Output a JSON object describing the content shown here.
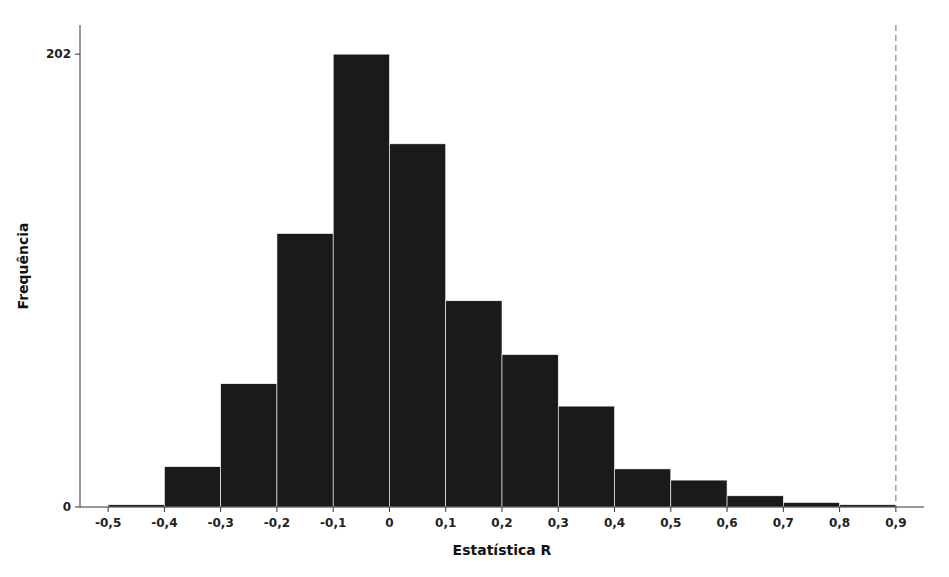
{
  "chart_data": {
    "type": "histogram",
    "bins": [
      -0.5,
      -0.4,
      -0.3,
      -0.2,
      -0.1,
      0.0,
      0.1,
      0.2,
      0.3,
      0.4,
      0.5,
      0.6,
      0.7,
      0.8,
      0.9
    ],
    "values": [
      1,
      18,
      55,
      122,
      202,
      162,
      92,
      68,
      45,
      17,
      12,
      5,
      2,
      1
    ],
    "color": "#1a1a1a",
    "xlabel": "Estatística R",
    "ylabel": "Frequência",
    "xlim": [
      -0.55,
      0.95
    ],
    "ylim": [
      0,
      215
    ],
    "xticks": [
      {
        "value": -0.5,
        "label": "-0,5"
      },
      {
        "value": -0.4,
        "label": "-0,4"
      },
      {
        "value": -0.3,
        "label": "-0,3"
      },
      {
        "value": -0.2,
        "label": "-0,2"
      },
      {
        "value": -0.1,
        "label": "-0,1"
      },
      0,
      {
        "value": 0.1,
        "label": "0,1"
      },
      {
        "value": 0.2,
        "label": "0,2"
      },
      {
        "value": 0.3,
        "label": "0,3"
      },
      {
        "value": 0.4,
        "label": "0,4"
      },
      {
        "value": 0.5,
        "label": "0,5"
      },
      {
        "value": 0.6,
        "label": "0,6"
      },
      {
        "value": 0.7,
        "label": "0,7"
      },
      {
        "value": 0.8,
        "label": "0,8"
      },
      {
        "value": 0.9,
        "label": "0,9"
      }
    ],
    "yticks": [
      0,
      202
    ],
    "reference_lines": [
      {
        "x": 0.9,
        "color": "#888888",
        "line_style": "dashed"
      }
    ],
    "grid": false
  }
}
